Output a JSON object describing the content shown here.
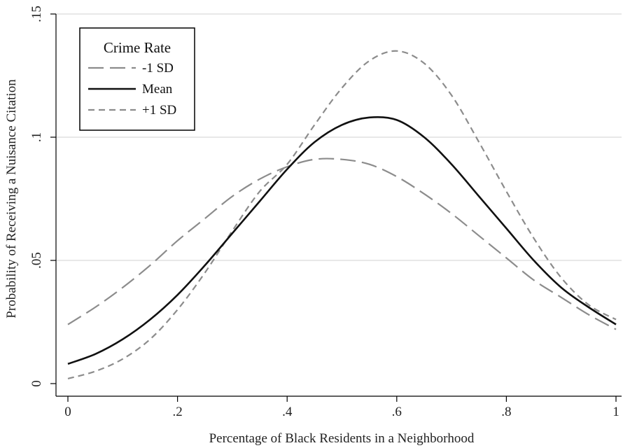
{
  "chart_data": {
    "type": "line",
    "xlabel": "Percentage of Black Residents in a Neighborhood",
    "ylabel": "Probability of Receiving a Nuisance Citation",
    "xlim": [
      0,
      1
    ],
    "ylim": [
      0,
      0.15
    ],
    "x_ticks": [
      {
        "value": 0,
        "label": "0"
      },
      {
        "value": 0.2,
        "label": ".2"
      },
      {
        "value": 0.4,
        "label": ".4"
      },
      {
        "value": 0.6,
        "label": ".6"
      },
      {
        "value": 0.8,
        "label": ".8"
      },
      {
        "value": 1,
        "label": "1"
      }
    ],
    "y_ticks": [
      {
        "value": 0,
        "label": "0"
      },
      {
        "value": 0.05,
        "label": ".05"
      },
      {
        "value": 0.1,
        "label": ".1"
      },
      {
        "value": 0.15,
        "label": ".15"
      }
    ],
    "grid": "horizontal",
    "legend": {
      "title": "Crime Rate",
      "position": "top-left"
    },
    "x": [
      0,
      0.05,
      0.1,
      0.15,
      0.2,
      0.25,
      0.3,
      0.35,
      0.4,
      0.45,
      0.5,
      0.55,
      0.6,
      0.65,
      0.7,
      0.75,
      0.8,
      0.85,
      0.9,
      0.95,
      1
    ],
    "series": [
      {
        "name": "-1 SD",
        "style": "long-dash",
        "color": "#8c8c8c",
        "values": [
          0.024,
          0.031,
          0.039,
          0.048,
          0.058,
          0.067,
          0.076,
          0.083,
          0.088,
          0.091,
          0.091,
          0.089,
          0.084,
          0.077,
          0.069,
          0.06,
          0.051,
          0.042,
          0.035,
          0.028,
          0.022
        ]
      },
      {
        "name": "Mean",
        "style": "solid",
        "color": "#111111",
        "values": [
          0.008,
          0.012,
          0.018,
          0.026,
          0.036,
          0.048,
          0.061,
          0.074,
          0.087,
          0.098,
          0.105,
          0.108,
          0.107,
          0.1,
          0.089,
          0.076,
          0.063,
          0.05,
          0.039,
          0.031,
          0.024
        ]
      },
      {
        "name": "+1 SD",
        "style": "short-dash",
        "color": "#8c8c8c",
        "values": [
          0.002,
          0.005,
          0.01,
          0.018,
          0.03,
          0.045,
          0.062,
          0.078,
          0.089,
          0.105,
          0.12,
          0.131,
          0.135,
          0.13,
          0.117,
          0.098,
          0.078,
          0.059,
          0.043,
          0.032,
          0.026
        ]
      }
    ]
  }
}
